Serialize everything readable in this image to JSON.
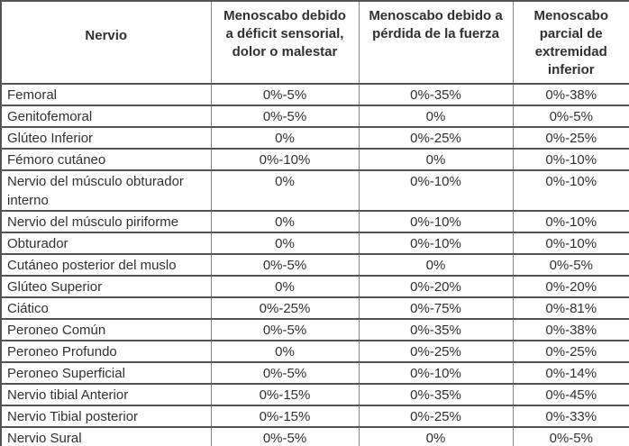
{
  "table": {
    "headers": [
      "Nervio",
      "Menoscabo debido a déficit sensorial, dolor o malestar",
      "Menoscabo debido a pérdida de la fuerza",
      "Menoscabo parcial de extremidad inferior"
    ],
    "rows": [
      [
        "Femoral",
        "0%-5%",
        "0%-35%",
        "0%-38%"
      ],
      [
        "Genitofemoral",
        "0%-5%",
        "0%",
        "0%-5%"
      ],
      [
        "Glúteo Inferior",
        "0%",
        "0%-25%",
        "0%-25%"
      ],
      [
        "Fémoro cutáneo",
        "0%-10%",
        "0%",
        "0%-10%"
      ],
      [
        "Nervio del músculo obturador interno",
        "0%",
        "0%-10%",
        "0%-10%"
      ],
      [
        "Nervio del músculo piriforme",
        "0%",
        "0%-10%",
        "0%-10%"
      ],
      [
        "Obturador",
        "0%",
        "0%-10%",
        "0%-10%"
      ],
      [
        "Cutáneo posterior del muslo",
        "0%-5%",
        "0%",
        "0%-5%"
      ],
      [
        "Glúteo Superior",
        "0%",
        "0%-20%",
        "0%-20%"
      ],
      [
        "Ciático",
        "0%-25%",
        "0%-75%",
        "0%-81%"
      ],
      [
        "Peroneo Común",
        "0%-5%",
        "0%-35%",
        "0%-38%"
      ],
      [
        "Peroneo Profundo",
        "0%",
        "0%-25%",
        "0%-25%"
      ],
      [
        "Peroneo Superficial",
        "0%-5%",
        "0%-10%",
        "0%-14%"
      ],
      [
        "Nervio tibial Anterior",
        "0%-15%",
        "0%-35%",
        "0%-45%"
      ],
      [
        "Nervio Tibial posterior",
        "0%-15%",
        "0%-25%",
        "0%-33%"
      ],
      [
        "Nervio Sural",
        "0%-5%",
        "0%",
        "0%-5%"
      ]
    ]
  },
  "colors": {
    "text": "#303030",
    "border_horizontal": "#545454",
    "border_vertical": "#8a8a8a",
    "background": "#ffffff"
  }
}
